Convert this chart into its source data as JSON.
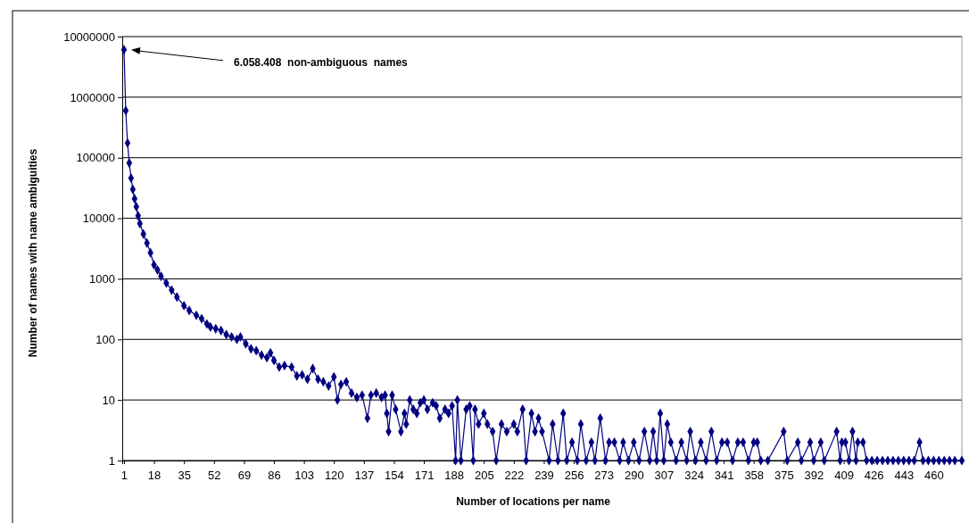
{
  "chart_data": {
    "type": "line",
    "xlabel": "Number of locations per name",
    "ylabel": "Number of names with name ambiguities",
    "log": true,
    "grid": "y",
    "marker": "diamond",
    "line_style": "solid",
    "xlim": [
      0,
      476
    ],
    "xticks": [
      1,
      18,
      35,
      52,
      69,
      86,
      103,
      120,
      137,
      154,
      171,
      188,
      205,
      222,
      239,
      256,
      273,
      290,
      307,
      324,
      341,
      358,
      375,
      392,
      409,
      426,
      443,
      460
    ],
    "ylim": [
      1,
      10000000
    ],
    "yticks": [
      1,
      10,
      100,
      1000,
      10000,
      100000,
      1000000,
      10000000
    ],
    "annotations": [
      "6.058.408  non-ambiguous  names"
    ],
    "series": [
      {
        "color": "#000080",
        "x": [
          1,
          2,
          3,
          4,
          5,
          6,
          7,
          8,
          9,
          10,
          12,
          14,
          16,
          18,
          20,
          22,
          25,
          28,
          31,
          35,
          38,
          42,
          45,
          48,
          50,
          53,
          56,
          59,
          62,
          65,
          67,
          70,
          73,
          76,
          79,
          82,
          84,
          86,
          89,
          92,
          96,
          99,
          102,
          105,
          108,
          111,
          114,
          117,
          120,
          122,
          124,
          127,
          130,
          133,
          136,
          139,
          141,
          144,
          147,
          149,
          150,
          151,
          153,
          155,
          158,
          160,
          161,
          163,
          165,
          167,
          169,
          171,
          173,
          176,
          178,
          180,
          183,
          185,
          187,
          189,
          190,
          192,
          195,
          197,
          199,
          200,
          202,
          205,
          207,
          210,
          212,
          215,
          218,
          222,
          224,
          227,
          229,
          232,
          234,
          236,
          238,
          242,
          244,
          247,
          250,
          252,
          255,
          258,
          260,
          263,
          266,
          268,
          271,
          274,
          276,
          279,
          282,
          284,
          287,
          290,
          293,
          296,
          299,
          301,
          303,
          305,
          307,
          309,
          311,
          314,
          317,
          320,
          322,
          325,
          328,
          331,
          334,
          337,
          340,
          343,
          346,
          349,
          352,
          355,
          358,
          360,
          362,
          366,
          375,
          377,
          383,
          385,
          390,
          392,
          396,
          398,
          405,
          407,
          408,
          410,
          412,
          414,
          416,
          417,
          420,
          422,
          425,
          428,
          431,
          434,
          437,
          440,
          443,
          446,
          449,
          452,
          454,
          457,
          460,
          463,
          466,
          469,
          472,
          476
        ],
        "values": [
          6058408,
          600000,
          175000,
          82000,
          46000,
          30000,
          21000,
          15500,
          11000,
          8200,
          5500,
          3900,
          2700,
          1700,
          1400,
          1100,
          850,
          650,
          500,
          360,
          300,
          250,
          220,
          180,
          160,
          150,
          140,
          120,
          110,
          100,
          110,
          85,
          70,
          65,
          55,
          50,
          60,
          45,
          35,
          37,
          35,
          25,
          26,
          22,
          33,
          22,
          20,
          17,
          24,
          10,
          18,
          20,
          13,
          11,
          12,
          5,
          12,
          13,
          11,
          12,
          6,
          3,
          12,
          7,
          3,
          6,
          4,
          10,
          7,
          6,
          9,
          10,
          7,
          9,
          8,
          5,
          7,
          6,
          8,
          1,
          10,
          1,
          7,
          8,
          1,
          7,
          4,
          6,
          4,
          3,
          1,
          4,
          3,
          4,
          3,
          7,
          1,
          6,
          3,
          5,
          3,
          1,
          4,
          1,
          6,
          1,
          2,
          1,
          4,
          1,
          2,
          1,
          5,
          1,
          2,
          2,
          1,
          2,
          1,
          2,
          1,
          3,
          1,
          3,
          1,
          6,
          1,
          4,
          2,
          1,
          2,
          1,
          3,
          1,
          2,
          1,
          3,
          1,
          2,
          2,
          1,
          2,
          2,
          1,
          2,
          2,
          1,
          1,
          3,
          1,
          2,
          1,
          2,
          1,
          2,
          1,
          3,
          1,
          2,
          2,
          1,
          3,
          1,
          2,
          2,
          1,
          1,
          1,
          1,
          1,
          1,
          1,
          1,
          1,
          1,
          2,
          1,
          1,
          1,
          1,
          1,
          1,
          1,
          1
        ]
      }
    ]
  }
}
